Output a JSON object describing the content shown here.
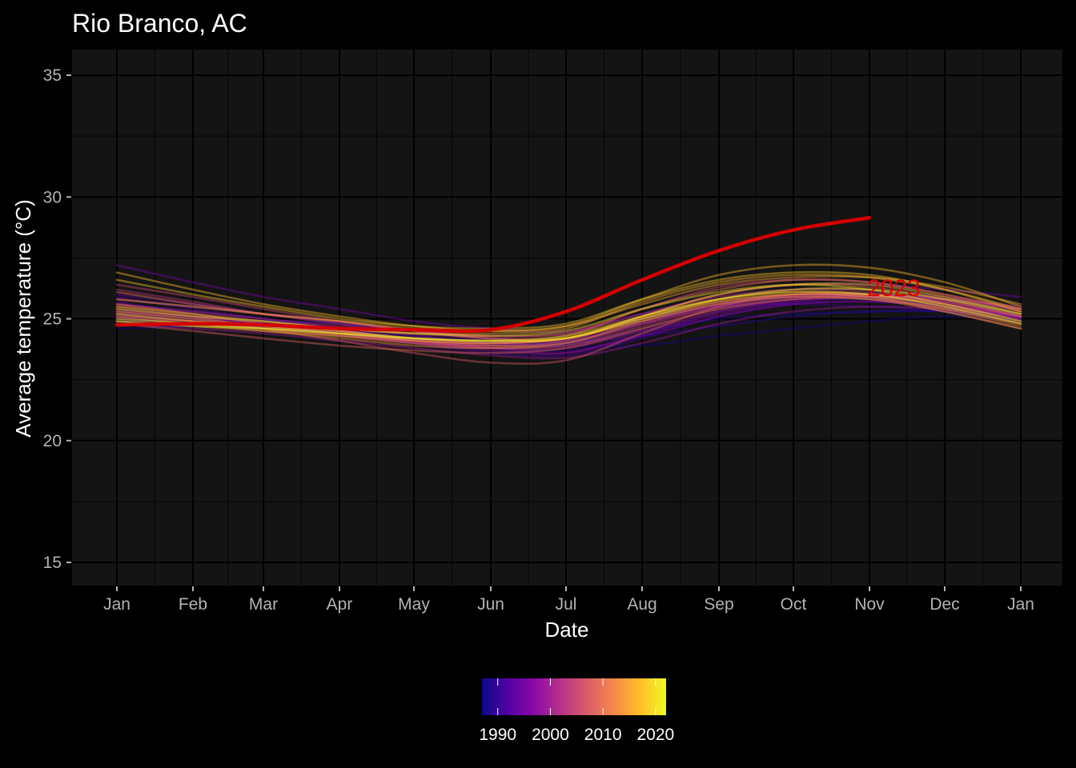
{
  "chart_data": {
    "type": "line",
    "title": "Rio Branco, AC",
    "xlabel": "Date",
    "ylabel": "Average temperature (°C)",
    "x_ticks": [
      "Jan",
      "Feb",
      "Mar",
      "Apr",
      "May",
      "Jun",
      "Jul",
      "Aug",
      "Sep",
      "Oct",
      "Nov",
      "Dec",
      "Jan"
    ],
    "y_ticks": [
      15,
      20,
      25,
      30,
      35
    ],
    "ylim": [
      14,
      36
    ],
    "grid": true,
    "colorbar": {
      "labels": [
        1990,
        2000,
        2010,
        2020
      ],
      "range": [
        1987,
        2022
      ],
      "palette": [
        "#0d0887",
        "#5302a3",
        "#8b0aa5",
        "#b83289",
        "#db5c68",
        "#f48849",
        "#febd2a",
        "#f0f921"
      ]
    },
    "highlight": {
      "name": "2023",
      "color": "#d40000",
      "x": [
        "Jan",
        "Feb",
        "Mar",
        "Apr",
        "May",
        "Jun",
        "Jul",
        "Aug",
        "Sep",
        "Oct",
        "Nov"
      ],
      "values": [
        24.75,
        24.8,
        24.75,
        24.6,
        24.55,
        24.55,
        25.3,
        26.6,
        27.8,
        28.65,
        29.15
      ]
    },
    "annotation": {
      "text": "2023",
      "x": "Nov",
      "y": 26.3
    },
    "series": [
      {
        "year": 1987,
        "values": [
          24.6,
          24.7,
          24.9,
          24.8,
          24.5,
          24.1,
          23.9,
          23.9,
          24.3,
          24.6,
          24.9,
          25.1,
          24.9
        ]
      },
      {
        "year": 1988,
        "values": [
          24.9,
          24.8,
          24.7,
          24.5,
          24.2,
          24.0,
          24.0,
          24.5,
          25.0,
          25.2,
          25.3,
          25.3,
          25.1
        ]
      },
      {
        "year": 1989,
        "values": [
          25.0,
          24.8,
          24.7,
          24.5,
          24.2,
          24.0,
          24.0,
          24.3,
          24.7,
          25.1,
          25.3,
          25.3,
          25.0
        ]
      },
      {
        "year": 1990,
        "values": [
          25.2,
          25.0,
          24.8,
          24.5,
          24.1,
          23.8,
          23.7,
          24.3,
          25.3,
          25.7,
          25.8,
          25.5,
          25.0
        ]
      },
      {
        "year": 1991,
        "values": [
          25.6,
          25.3,
          25.0,
          24.6,
          24.2,
          24.0,
          24.2,
          25.0,
          25.5,
          25.6,
          25.5,
          25.3,
          24.9
        ]
      },
      {
        "year": 1992,
        "values": [
          25.9,
          25.4,
          25.0,
          24.6,
          24.0,
          23.6,
          23.5,
          24.2,
          25.1,
          25.6,
          25.7,
          25.5,
          25.0
        ]
      },
      {
        "year": 1993,
        "values": [
          25.7,
          25.2,
          24.9,
          24.6,
          24.3,
          24.1,
          24.1,
          24.9,
          25.6,
          25.9,
          25.9,
          25.6,
          25.1
        ]
      },
      {
        "year": 1994,
        "values": [
          26.0,
          25.6,
          25.2,
          24.8,
          24.3,
          24.0,
          24.0,
          24.8,
          25.6,
          26.0,
          26.0,
          25.7,
          25.2
        ]
      },
      {
        "year": 1995,
        "values": [
          27.2,
          26.5,
          25.9,
          25.4,
          24.9,
          24.6,
          24.5,
          25.2,
          26.0,
          26.4,
          26.4,
          26.2,
          25.9
        ]
      },
      {
        "year": 1996,
        "values": [
          25.3,
          25.1,
          24.8,
          24.5,
          24.1,
          23.8,
          23.6,
          24.3,
          25.1,
          25.6,
          25.7,
          25.5,
          25.1
        ]
      },
      {
        "year": 1997,
        "values": [
          25.1,
          24.9,
          24.7,
          24.4,
          24.0,
          23.7,
          23.6,
          24.4,
          25.2,
          25.7,
          25.9,
          25.8,
          25.5
        ]
      },
      {
        "year": 1998,
        "values": [
          25.8,
          25.5,
          25.2,
          24.9,
          24.5,
          24.2,
          24.1,
          24.8,
          25.5,
          25.9,
          26.0,
          25.8,
          25.4
        ]
      },
      {
        "year": 1999,
        "values": [
          24.8,
          24.6,
          24.4,
          24.1,
          23.8,
          23.5,
          23.4,
          24.0,
          24.8,
          25.3,
          25.5,
          25.4,
          25.1
        ]
      },
      {
        "year": 2000,
        "values": [
          25.1,
          24.9,
          24.7,
          24.4,
          24.1,
          23.8,
          23.8,
          24.5,
          25.3,
          25.8,
          26.0,
          25.8,
          25.3
        ]
      },
      {
        "year": 2001,
        "values": [
          25.4,
          25.1,
          24.8,
          24.5,
          24.1,
          23.9,
          23.9,
          24.6,
          25.4,
          25.8,
          25.9,
          25.6,
          25.1
        ]
      },
      {
        "year": 2002,
        "values": [
          25.6,
          25.3,
          25.0,
          24.7,
          24.4,
          24.2,
          24.2,
          25.0,
          25.8,
          26.2,
          26.2,
          25.9,
          25.4
        ]
      },
      {
        "year": 2003,
        "values": [
          26.2,
          25.7,
          25.2,
          24.8,
          24.5,
          24.3,
          24.4,
          25.2,
          25.9,
          26.2,
          26.1,
          25.7,
          25.1
        ]
      },
      {
        "year": 2004,
        "values": [
          25.0,
          24.8,
          24.6,
          24.3,
          24.0,
          23.8,
          23.9,
          24.7,
          25.5,
          25.9,
          25.9,
          25.6,
          25.0
        ]
      },
      {
        "year": 2005,
        "values": [
          26.4,
          25.9,
          25.4,
          24.9,
          24.5,
          24.3,
          24.4,
          25.4,
          26.3,
          26.6,
          26.5,
          26.0,
          25.4
        ]
      },
      {
        "year": 2006,
        "values": [
          25.3,
          25.0,
          24.7,
          24.4,
          24.1,
          23.9,
          24.0,
          24.8,
          25.6,
          26.0,
          26.0,
          25.7,
          25.1
        ]
      },
      {
        "year": 2007,
        "values": [
          25.5,
          25.1,
          24.6,
          24.1,
          23.6,
          23.2,
          23.3,
          24.4,
          25.5,
          26.0,
          25.9,
          25.3,
          24.6
        ]
      },
      {
        "year": 2008,
        "values": [
          24.8,
          24.5,
          24.2,
          23.9,
          23.7,
          23.6,
          23.8,
          24.6,
          25.4,
          25.8,
          25.8,
          25.4,
          24.8
        ]
      },
      {
        "year": 2009,
        "values": [
          25.2,
          24.9,
          24.6,
          24.3,
          24.0,
          23.9,
          24.1,
          25.1,
          26.0,
          26.4,
          26.3,
          25.8,
          25.1
        ]
      },
      {
        "year": 2010,
        "values": [
          26.1,
          25.6,
          25.2,
          24.9,
          24.5,
          24.2,
          24.3,
          25.4,
          26.2,
          26.6,
          26.5,
          26.0,
          25.3
        ]
      },
      {
        "year": 2011,
        "values": [
          25.3,
          25.0,
          24.7,
          24.4,
          24.1,
          24.0,
          24.2,
          25.0,
          25.7,
          26.0,
          26.0,
          25.6,
          24.9
        ]
      },
      {
        "year": 2012,
        "values": [
          25.6,
          25.2,
          24.8,
          24.5,
          24.2,
          24.0,
          24.2,
          25.1,
          25.8,
          26.1,
          26.0,
          25.5,
          24.8
        ]
      },
      {
        "year": 2013,
        "values": [
          24.9,
          24.7,
          24.5,
          24.3,
          24.1,
          24.0,
          24.2,
          24.9,
          25.6,
          25.9,
          25.8,
          25.3,
          24.6
        ]
      },
      {
        "year": 2014,
        "values": [
          25.1,
          24.8,
          24.5,
          24.2,
          23.9,
          23.8,
          24.0,
          24.9,
          25.7,
          26.0,
          25.9,
          25.4,
          24.7
        ]
      },
      {
        "year": 2015,
        "values": [
          25.8,
          25.5,
          25.2,
          24.9,
          24.6,
          24.5,
          24.7,
          25.6,
          26.4,
          26.7,
          26.7,
          26.3,
          25.6
        ]
      },
      {
        "year": 2016,
        "values": [
          25.5,
          25.2,
          24.9,
          24.6,
          24.4,
          24.4,
          24.6,
          25.7,
          26.5,
          26.8,
          26.7,
          26.2,
          25.4
        ]
      },
      {
        "year": 2017,
        "values": [
          26.9,
          26.2,
          25.6,
          25.1,
          24.7,
          24.5,
          24.7,
          25.8,
          26.8,
          27.2,
          27.1,
          26.5,
          25.5
        ]
      },
      {
        "year": 2018,
        "values": [
          26.6,
          26.0,
          25.5,
          25.0,
          24.7,
          24.6,
          24.8,
          25.8,
          26.6,
          26.9,
          26.8,
          26.2,
          25.3
        ]
      },
      {
        "year": 2019,
        "values": [
          25.2,
          24.9,
          24.7,
          24.5,
          24.2,
          24.1,
          24.2,
          25.1,
          26.0,
          26.4,
          26.4,
          25.9,
          25.2
        ]
      },
      {
        "year": 2020,
        "values": [
          25.4,
          25.1,
          24.9,
          24.6,
          24.4,
          24.3,
          24.5,
          25.4,
          26.1,
          26.4,
          26.2,
          25.6,
          24.9
        ]
      },
      {
        "year": 2021,
        "values": [
          25.0,
          24.8,
          24.6,
          24.4,
          24.2,
          24.1,
          24.3,
          25.1,
          25.8,
          26.1,
          26.0,
          25.5,
          24.8
        ]
      },
      {
        "year": 2022,
        "values": [
          24.9,
          24.7,
          24.6,
          24.4,
          24.2,
          24.1,
          24.2,
          25.0,
          25.8,
          26.2,
          26.2,
          25.8,
          25.2
        ]
      }
    ]
  }
}
